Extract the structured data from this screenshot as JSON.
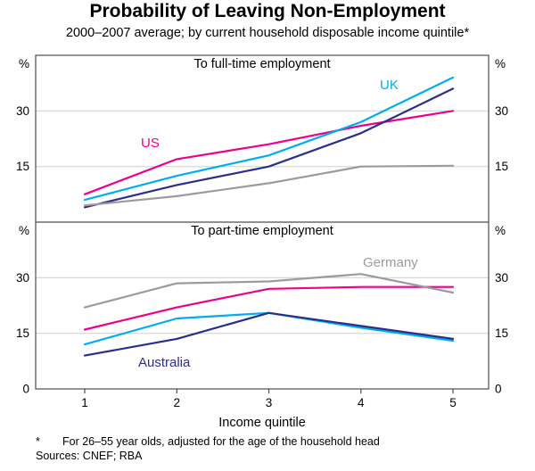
{
  "title": "Probability of Leaving Non-Employment",
  "subtitle": "2000–2007 average; by current household disposable income quintile*",
  "footnote": {
    "marker": "*",
    "text": "For 26–55 year olds, adjusted for the age of the household head"
  },
  "sources": "Sources: CNEF; RBA",
  "colors": {
    "us": "#EC008C",
    "uk": "#00AEEF",
    "australia": "#2B2E8C",
    "germany": "#9B9B9B",
    "grid": "#CFCFCF",
    "frame": "#4D4D4D"
  },
  "chart_data": [
    {
      "type": "line",
      "panel_title": "To full-time employment",
      "unit": "%",
      "x": [
        1,
        2,
        3,
        4,
        5
      ],
      "xlabel": "Income quintile",
      "ylim": [
        0,
        45
      ],
      "gridlines": [
        15,
        30
      ],
      "ytick_labels": [
        15,
        30
      ],
      "legend_position": "inline-annotations",
      "series": [
        {
          "name": "US",
          "color_key": "us",
          "values": [
            7.5,
            17,
            21,
            26,
            30
          ]
        },
        {
          "name": "UK",
          "color_key": "uk",
          "values": [
            6,
            12.5,
            18,
            27,
            39
          ]
        },
        {
          "name": "Australia",
          "color_key": "australia",
          "values": [
            4,
            10,
            15,
            24,
            36
          ]
        },
        {
          "name": "Germany",
          "color_key": "germany",
          "values": [
            4.5,
            7,
            10.5,
            15,
            15.2
          ]
        }
      ],
      "annotations": [
        {
          "text": "US",
          "color_key": "us"
        },
        {
          "text": "UK",
          "color_key": "uk"
        }
      ]
    },
    {
      "type": "line",
      "panel_title": "To part-time employment",
      "unit": "%",
      "x": [
        1,
        2,
        3,
        4,
        5
      ],
      "xlabel": "Income quintile",
      "ylim": [
        0,
        45
      ],
      "gridlines": [
        15,
        30
      ],
      "ytick_labels": [
        0,
        15,
        30
      ],
      "legend_position": "inline-annotations",
      "series": [
        {
          "name": "US",
          "color_key": "us",
          "values": [
            16,
            22,
            27,
            27.5,
            27.5
          ]
        },
        {
          "name": "UK",
          "color_key": "uk",
          "values": [
            12,
            19,
            20.5,
            16.5,
            13
          ]
        },
        {
          "name": "Australia",
          "color_key": "australia",
          "values": [
            9,
            13.5,
            20.5,
            17,
            13.5
          ]
        },
        {
          "name": "Germany",
          "color_key": "germany",
          "values": [
            22,
            28.5,
            29,
            31,
            26
          ]
        }
      ],
      "annotations": [
        {
          "text": "Germany",
          "color_key": "germany"
        },
        {
          "text": "Australia",
          "color_key": "australia"
        }
      ]
    }
  ]
}
